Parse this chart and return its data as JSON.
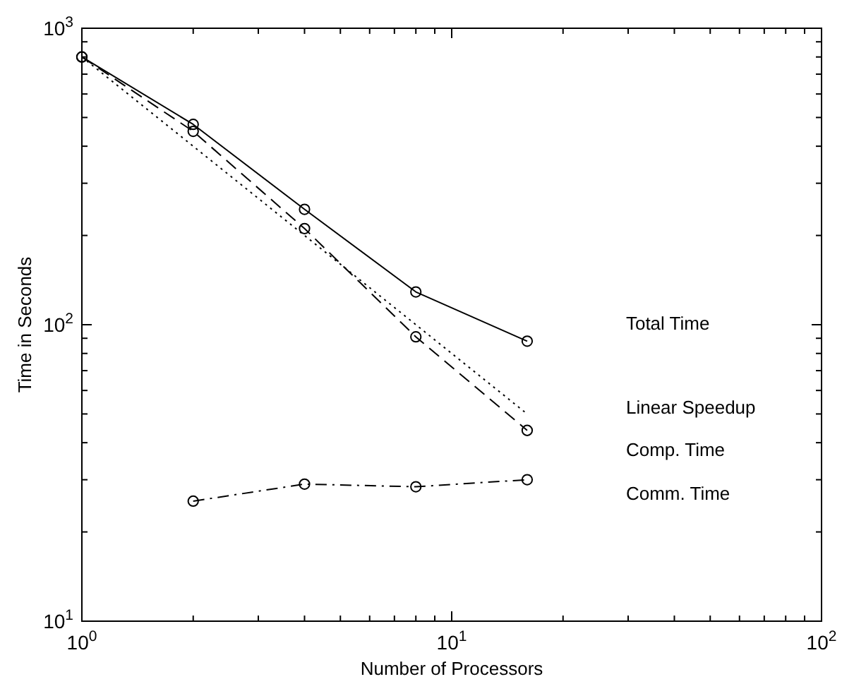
{
  "chart_data": {
    "type": "line",
    "xlabel": "Number of Processors",
    "ylabel": "Time in Seconds",
    "log": "xy",
    "x": [
      1,
      2,
      4,
      8,
      16
    ],
    "xlim": [
      1,
      100
    ],
    "ylim": [
      10,
      1000
    ],
    "xticks": [
      {
        "value": 1,
        "label": "10$^{0}$"
      },
      {
        "value": 2,
        "label": null
      },
      {
        "value": 3,
        "label": null
      },
      {
        "value": 4,
        "label": null
      },
      {
        "value": 5,
        "label": null
      },
      {
        "value": 6,
        "label": null
      },
      {
        "value": 7,
        "label": null
      },
      {
        "value": 8,
        "label": null
      },
      {
        "value": 9,
        "label": null
      },
      {
        "value": 10,
        "label": "10$^{1}$"
      },
      {
        "value": 20,
        "label": null
      },
      {
        "value": 30,
        "label": null
      },
      {
        "value": 40,
        "label": null
      },
      {
        "value": 50,
        "label": null
      },
      {
        "value": 60,
        "label": null
      },
      {
        "value": 70,
        "label": null
      },
      {
        "value": 80,
        "label": null
      },
      {
        "value": 90,
        "label": null
      },
      {
        "value": 100,
        "label": "10$^{2}$"
      }
    ],
    "yticks": [
      {
        "value": 10,
        "label": "10$^{1}$"
      },
      {
        "value": 20,
        "label": null
      },
      {
        "value": 30,
        "label": null
      },
      {
        "value": 40,
        "label": null
      },
      {
        "value": 50,
        "label": null
      },
      {
        "value": 60,
        "label": null
      },
      {
        "value": 70,
        "label": null
      },
      {
        "value": 80,
        "label": null
      },
      {
        "value": 90,
        "label": null
      },
      {
        "value": 100,
        "label": "10$^{2}$"
      },
      {
        "value": 200,
        "label": null
      },
      {
        "value": 300,
        "label": null
      },
      {
        "value": 400,
        "label": null
      },
      {
        "value": 500,
        "label": null
      },
      {
        "value": 600,
        "label": null
      },
      {
        "value": 700,
        "label": null
      },
      {
        "value": 800,
        "label": null
      },
      {
        "value": 900,
        "label": null
      },
      {
        "value": 1000,
        "label": "10$^{3}$"
      }
    ],
    "grid": false,
    "legend": false,
    "series": [
      {
        "name": "Total Time",
        "color": "#000000",
        "values": [
          800,
          474,
          245,
          129,
          88
        ],
        "marker": "circle",
        "line_style": "solid"
      },
      {
        "name": "Linear Speedup",
        "color": "#000000",
        "values": [
          800,
          400,
          200,
          100,
          50
        ],
        "marker": "none",
        "line_style": "dotted"
      },
      {
        "name": "Comp. Time",
        "color": "#000000",
        "values": [
          800,
          449,
          211,
          91,
          44
        ],
        "marker": "circle",
        "line_style": "dashed"
      },
      {
        "name": "Comm. Time",
        "color": "#000000",
        "x": [
          2,
          4,
          8,
          16
        ],
        "values": [
          25.4,
          29,
          28.4,
          30
        ],
        "marker": "circle",
        "line_style": "dashdot"
      }
    ]
  }
}
